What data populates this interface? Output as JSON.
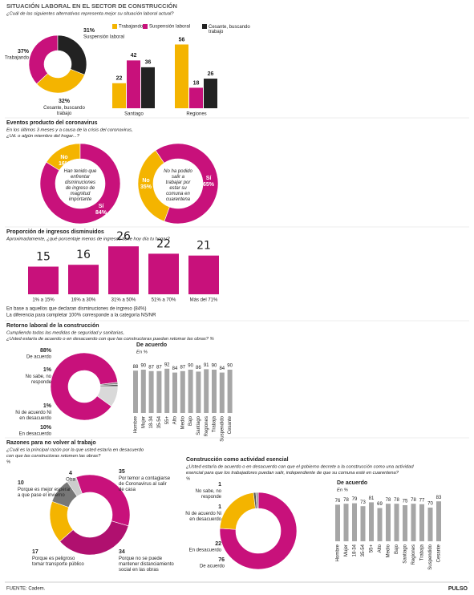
{
  "chart_data": [
    {
      "type": "pie",
      "title": "SITUACIÓN LABORAL EN EL SECTOR DE CONSTRUCCIÓN",
      "subtitle": [
        "¿Cuál de las siguientes alternativas representa mejor su situación laboral actual?"
      ],
      "categories": [
        "Trabajando",
        "Suspensión laboral",
        "Cesante, buscando trabajo"
      ],
      "values": [
        37,
        31,
        32
      ],
      "value_labels": [
        "37%",
        "31%",
        "32%"
      ],
      "colors": [
        "#c8117b",
        "#222222",
        "#f4b400"
      ]
    },
    {
      "type": "bar",
      "categories": [
        "Santiago",
        "Regiones"
      ],
      "legend": "top",
      "series": [
        {
          "name": "Trabajando",
          "color": "#f4b400",
          "values": [
            22,
            56
          ]
        },
        {
          "name": "Suspensión laboral",
          "color": "#c8117b",
          "values": [
            42,
            18
          ]
        },
        {
          "name": "Cesante, buscando trabajo",
          "color": "#222222",
          "values": [
            36,
            26
          ]
        }
      ]
    },
    {
      "type": "pie",
      "title": "Eventos producto del coronavirus",
      "subtitle": [
        "En los últimos 3 meses y a causa de la crisis del coronavirus,",
        "¿Ud. o algún miembro del hogar...?"
      ],
      "annotation": "Han tenido que enfrentar disminuciones de ingreso de magnitud importante",
      "categories": [
        "No",
        "Sí"
      ],
      "values": [
        16,
        84
      ],
      "value_labels": [
        "16%",
        "84%"
      ],
      "colors": [
        "#f4b400",
        "#c8117b"
      ]
    },
    {
      "type": "pie",
      "annotation": "No ha podido salir a trabajar por estar su comuna en cuarentena",
      "categories": [
        "No",
        "Sí"
      ],
      "values": [
        35,
        65
      ],
      "value_labels": [
        "35%",
        "65%"
      ],
      "colors": [
        "#f4b400",
        "#c8117b"
      ]
    },
    {
      "type": "bar",
      "title": "Proporción de ingresos disminuidos",
      "subtitle": [
        "Aproximadamente, ¿qué porcentaje menos de ingresos tiene hoy día tu hogar?"
      ],
      "categories": [
        "1% a 15%",
        "16% a 30%",
        "31% a 50%",
        "51% a 70%",
        "Más del 71%"
      ],
      "values": [
        15,
        16,
        26,
        22,
        21
      ],
      "color": "#c8117b",
      "notes": [
        "En base a aquellos que declaran disminuciones de ingreso (84%)",
        "La diferencia para completar 100% corresponde a la categoría NS/NR"
      ]
    },
    {
      "type": "pie",
      "title": "Retorno laboral de la construcción",
      "subtitle": [
        "Cumpliendo todas las medidas de seguridad y sanitarias,",
        "¿Usted estaría de acuerdo o en desacuerdo con que las constructoras puedan retomar las obras? %"
      ],
      "categories": [
        "De acuerdo",
        "No sabe, no responde",
        "Ni de acuerdo Ni en desacuerdo",
        "En desacuerdo"
      ],
      "values": [
        88,
        1,
        1,
        10
      ],
      "value_labels": [
        "88%",
        "1%",
        "1%",
        "10%"
      ],
      "colors": [
        "#c8117b",
        "#888888",
        "#555555",
        "#d9d9d9"
      ]
    },
    {
      "type": "bar",
      "title": "De acuerdo",
      "subtitle": [
        "En %"
      ],
      "categories": [
        "Hombre",
        "Mujer",
        "18-34",
        "35-54",
        "55+",
        "Alto",
        "Medio",
        "Bajo",
        "Santiago",
        "Regiones",
        "Trabaja",
        "Suspendido",
        "Cesante"
      ],
      "values": [
        88,
        90,
        87,
        87,
        92,
        84,
        87,
        90,
        86,
        91,
        90,
        84,
        90
      ],
      "color": "#a6a6a6"
    },
    {
      "type": "pie",
      "title": "Razones para no volver al trabajo",
      "subtitle": [
        "¿Cuál es la principal razón por la que usted estaría en desacuerdo",
        "con que las constructoras retomen las obras?",
        "%"
      ],
      "categories": [
        "Por temor a contagiarse de Coronavirus al salir de casa",
        "Porque no se puede mantener distanciamiento social en las obras",
        "Porque es peligroso tomar transporte público",
        "Porque es mejor esperar a que pase el invierno",
        "Otra"
      ],
      "values": [
        35,
        34,
        17,
        10,
        4
      ],
      "colors": [
        "#c8117b",
        "#b0106f",
        "#f4b400",
        "#777777",
        "#cccccc"
      ]
    },
    {
      "type": "pie",
      "title": "Construcción como actividad esencial",
      "subtitle": [
        "¿Usted estaría de acuerdo o en desacuerdo con que el gobierno decrete a la construcción como una actividad",
        "esencial para que los trabajadores puedan salir, independiente de que su comuna esté en cuarentena?",
        "%"
      ],
      "categories": [
        "De acuerdo",
        "En desacuerdo",
        "Ni de acuerdo Ni en desacuerdo",
        "No sabe, no responde"
      ],
      "values": [
        76,
        22,
        1,
        1
      ],
      "colors": [
        "#c8117b",
        "#f4b400",
        "#555555",
        "#999999"
      ]
    },
    {
      "type": "bar",
      "title": "De acuerdo",
      "subtitle": [
        "En %"
      ],
      "categories": [
        "Hombre",
        "Mujer",
        "18-34",
        "35-54",
        "55+",
        "Alto",
        "Medio",
        "Bajo",
        "Santiago",
        "Regiones",
        "Trabaja",
        "Suspendido",
        "Cesante"
      ],
      "values": [
        76,
        78,
        79,
        73,
        81,
        69,
        78,
        78,
        75,
        78,
        77,
        70,
        83
      ],
      "color": "#a6a6a6"
    }
  ],
  "footer": {
    "source": "FUENTE: Cadem.",
    "brand": "PULSO"
  }
}
